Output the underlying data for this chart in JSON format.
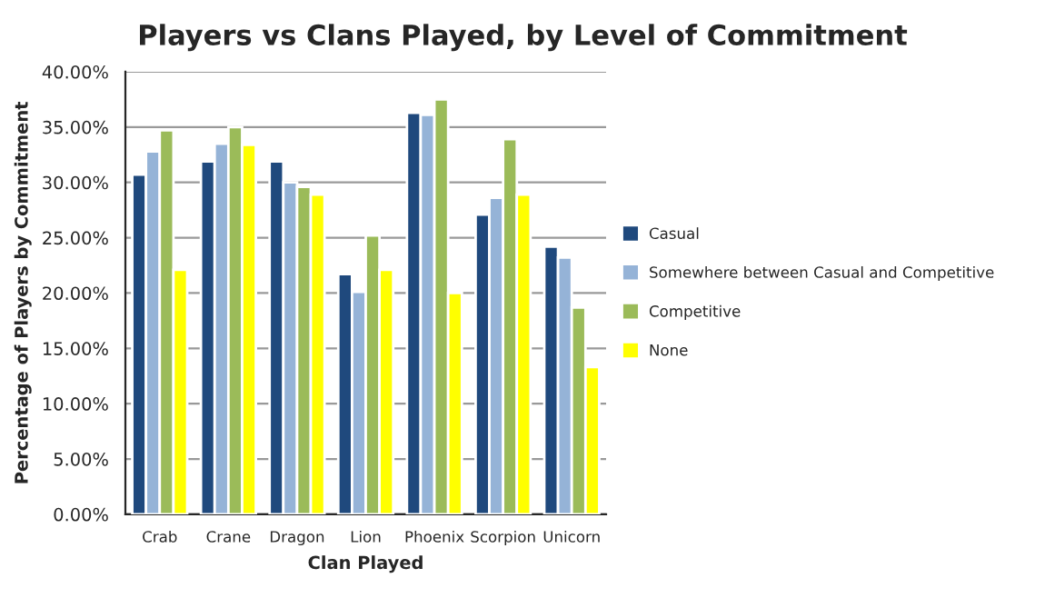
{
  "chart_data": {
    "type": "bar",
    "title": "Players vs Clans Played, by Level of Commitment",
    "xlabel": "Clan Played",
    "ylabel": "Percentage of Players by Commitment",
    "categories": [
      "Crab",
      "Crane",
      "Dragon",
      "Lion",
      "Phoenix",
      "Scorpion",
      "Unicorn"
    ],
    "series": [
      {
        "name": "Casual",
        "color": "#1f497d",
        "values": [
          30.7,
          31.9,
          31.9,
          21.7,
          36.3,
          27.1,
          24.2
        ]
      },
      {
        "name": "Somewhere between Casual and Competitive",
        "color": "#95b3d7",
        "values": [
          32.8,
          33.5,
          30.0,
          20.1,
          36.1,
          28.6,
          23.2
        ]
      },
      {
        "name": "Competitive",
        "color": "#9bbb59",
        "values": [
          34.7,
          35.0,
          29.6,
          25.2,
          37.5,
          33.9,
          18.7
        ]
      },
      {
        "name": "None",
        "color": "#ffff00",
        "values": [
          22.1,
          33.4,
          28.9,
          22.1,
          20.0,
          28.9,
          13.3
        ]
      }
    ],
    "ylim": [
      0,
      40
    ],
    "yticks": [
      {
        "value": 0,
        "label": "0.00%"
      },
      {
        "value": 5,
        "label": "5.00%"
      },
      {
        "value": 10,
        "label": "10.00%"
      },
      {
        "value": 15,
        "label": "15.00%"
      },
      {
        "value": 20,
        "label": "20.00%"
      },
      {
        "value": 25,
        "label": "25.00%"
      },
      {
        "value": 30,
        "label": "30.00%"
      },
      {
        "value": 35,
        "label": "35.00%"
      },
      {
        "value": 40,
        "label": "40.00%"
      }
    ],
    "grid": "y",
    "legend": "right"
  }
}
